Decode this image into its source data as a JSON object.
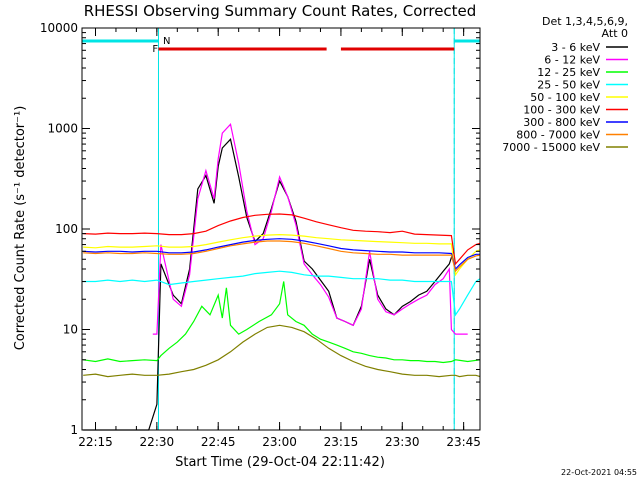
{
  "chart_data": {
    "type": "line",
    "title": "RHESSI Observing Summary Count Rates, Corrected",
    "xlabel": "Start Time (29-Oct-04 22:11:42)",
    "ylabel": "Corrected Count Rate (s⁻¹ detector⁻¹)",
    "yscale": "log",
    "ylim": [
      1,
      10000
    ],
    "xlim_minutes_from_22:00": [
      11.7,
      109
    ],
    "x_ticks": [
      "22:15",
      "22:30",
      "22:45",
      "23:00",
      "23:15",
      "23:30",
      "23:45"
    ],
    "y_ticks": [
      "1",
      "10",
      "100",
      "1000",
      "10000"
    ],
    "legend_title": "Det 1,3,4,5,6,9,",
    "legend_subtitle": "Att 0",
    "legend_position": "right",
    "footer": "22-Oct-2021 04:55",
    "flags": {
      "N_label": "N",
      "F_label": "F",
      "night_segments": [
        [
          11.7,
          30.4
        ],
        [
          102.7,
          109
        ]
      ],
      "flare_segments": [
        [
          30.4,
          71.5
        ],
        [
          75,
          102.7
        ]
      ]
    },
    "series": [
      {
        "name": "3 - 6 keV",
        "color": "#000000",
        "x": [
          12,
          26,
          28,
          30,
          31,
          34,
          36,
          38,
          40,
          42,
          44,
          45,
          46,
          48,
          50,
          52,
          54,
          56,
          58,
          60,
          62,
          64,
          66,
          68,
          70,
          72,
          74,
          76,
          78,
          80,
          82,
          84,
          86,
          88,
          90,
          92,
          94,
          96,
          98,
          100,
          101.5,
          102.5
        ],
        "y": [
          1,
          1,
          1,
          1.8,
          45,
          22,
          18,
          40,
          250,
          340,
          180,
          420,
          640,
          780,
          330,
          130,
          75,
          90,
          160,
          300,
          210,
          120,
          48,
          40,
          31,
          24,
          13,
          12,
          11,
          17,
          50,
          22,
          16,
          14,
          17,
          19,
          22,
          24,
          30,
          38,
          45,
          60
        ]
      },
      {
        "name": "6 - 12 keV",
        "color": "#ff00ff",
        "x": [
          29,
          30,
          31,
          34,
          36,
          38,
          40,
          42,
          44,
          45,
          46,
          48,
          50,
          52,
          54,
          56,
          58,
          60,
          62,
          64,
          66,
          68,
          70,
          72,
          74,
          76,
          78,
          80,
          82,
          84,
          86,
          88,
          90,
          92,
          94,
          96,
          98,
          100,
          101.5,
          102,
          103,
          106
        ],
        "y": [
          9,
          9,
          70,
          20,
          17,
          35,
          200,
          380,
          200,
          500,
          900,
          1100,
          450,
          150,
          70,
          80,
          150,
          330,
          210,
          110,
          45,
          35,
          28,
          21,
          13,
          12,
          11,
          16,
          60,
          20,
          15,
          14,
          16,
          18,
          20,
          22,
          28,
          32,
          40,
          10,
          9,
          9
        ]
      },
      {
        "name": "12 - 25 keV",
        "color": "#00ff00",
        "x": [
          12,
          15,
          18,
          21,
          24,
          27,
          30,
          31,
          33,
          35,
          37,
          39,
          41,
          43,
          45,
          46,
          47,
          48,
          50,
          52,
          55,
          58,
          60,
          61,
          62,
          64,
          66,
          68,
          70,
          72,
          74,
          76,
          78,
          80,
          82,
          84,
          86,
          88,
          90,
          92,
          94,
          96,
          98,
          100,
          102,
          103,
          106,
          109
        ],
        "y": [
          5,
          4.8,
          5.1,
          4.8,
          4.9,
          5,
          4.9,
          5.5,
          6.5,
          7.5,
          9,
          12,
          17,
          14,
          22,
          13,
          26,
          11,
          9,
          10,
          12,
          14,
          18,
          30,
          14,
          12,
          11,
          9,
          8,
          7.5,
          7,
          6.5,
          6,
          5.8,
          5.5,
          5.3,
          5.2,
          5,
          5,
          4.9,
          4.9,
          4.8,
          4.8,
          4.7,
          4.8,
          5,
          4.8,
          5
        ]
      },
      {
        "name": "25 - 50 keV",
        "color": "#00ffff",
        "x": [
          12,
          15,
          18,
          21,
          24,
          27,
          30,
          33,
          36,
          39,
          42,
          45,
          48,
          51,
          54,
          57,
          60,
          63,
          66,
          69,
          72,
          75,
          78,
          81,
          84,
          87,
          90,
          93,
          96,
          99,
          102,
          103,
          104,
          106,
          108,
          109
        ],
        "y": [
          30,
          30,
          31,
          30,
          31,
          30,
          31,
          28,
          29,
          30,
          31,
          32,
          33,
          34,
          36,
          37,
          38,
          37,
          35,
          34,
          34,
          33,
          32,
          32,
          32,
          31,
          31,
          30,
          30,
          30,
          30,
          14,
          16,
          22,
          30,
          32
        ]
      },
      {
        "name": "50 - 100 keV",
        "color": "#ffff00",
        "x": [
          12,
          15,
          18,
          21,
          24,
          27,
          30,
          33,
          36,
          39,
          42,
          45,
          48,
          51,
          54,
          57,
          60,
          63,
          66,
          69,
          72,
          75,
          78,
          81,
          84,
          87,
          90,
          93,
          96,
          99,
          102,
          103,
          104,
          106,
          108,
          109
        ],
        "y": [
          66,
          65,
          67,
          66,
          66,
          67,
          68,
          66,
          66,
          67,
          70,
          74,
          78,
          82,
          85,
          87,
          88,
          87,
          85,
          82,
          80,
          78,
          77,
          76,
          75,
          74,
          73,
          72,
          72,
          71,
          71,
          35,
          40,
          50,
          60,
          62
        ]
      },
      {
        "name": "100 - 300 keV",
        "color": "#ff0000",
        "x": [
          12,
          15,
          18,
          21,
          24,
          27,
          30,
          33,
          36,
          39,
          42,
          45,
          48,
          51,
          54,
          57,
          60,
          63,
          66,
          69,
          72,
          75,
          78,
          81,
          84,
          87,
          90,
          93,
          96,
          99,
          102,
          103,
          104,
          106,
          108,
          109
        ],
        "y": [
          90,
          89,
          91,
          90,
          90,
          91,
          90,
          88,
          88,
          90,
          95,
          108,
          120,
          130,
          137,
          140,
          141,
          138,
          128,
          118,
          110,
          103,
          97,
          95,
          94,
          92,
          95,
          89,
          88,
          87,
          86,
          45,
          50,
          62,
          70,
          72
        ]
      },
      {
        "name": "300 - 800 keV",
        "color": "#0000ff",
        "x": [
          12,
          15,
          18,
          21,
          24,
          27,
          30,
          33,
          36,
          39,
          42,
          45,
          48,
          51,
          54,
          57,
          60,
          63,
          66,
          69,
          72,
          75,
          78,
          81,
          84,
          87,
          90,
          93,
          96,
          99,
          102,
          103,
          104,
          106,
          108,
          109
        ],
        "y": [
          60,
          59,
          60,
          60,
          59,
          60,
          60,
          58,
          58,
          59,
          62,
          66,
          70,
          74,
          77,
          79,
          80,
          79,
          76,
          72,
          68,
          64,
          62,
          61,
          60,
          59,
          59,
          58,
          58,
          58,
          57,
          40,
          44,
          52,
          56,
          56
        ]
      },
      {
        "name": "800 - 7000 keV",
        "color": "#ff8000",
        "x": [
          12,
          15,
          18,
          21,
          24,
          27,
          30,
          33,
          36,
          39,
          42,
          45,
          48,
          51,
          54,
          57,
          60,
          63,
          66,
          69,
          72,
          75,
          78,
          81,
          84,
          87,
          90,
          93,
          96,
          99,
          102,
          103,
          104,
          106,
          108,
          109
        ],
        "y": [
          58,
          57,
          58,
          57,
          57,
          58,
          57,
          56,
          56,
          57,
          60,
          64,
          68,
          71,
          74,
          76,
          76,
          75,
          72,
          68,
          64,
          60,
          58,
          57,
          56,
          56,
          55,
          55,
          55,
          55,
          55,
          38,
          42,
          50,
          54,
          55
        ]
      },
      {
        "name": "7000 - 15000 keV",
        "color": "#808000",
        "x": [
          12,
          15,
          18,
          21,
          24,
          27,
          30,
          33,
          36,
          39,
          42,
          45,
          48,
          51,
          54,
          57,
          60,
          63,
          66,
          69,
          72,
          75,
          78,
          81,
          84,
          87,
          90,
          93,
          96,
          99,
          102,
          103,
          104,
          106,
          108,
          109
        ],
        "y": [
          3.5,
          3.6,
          3.4,
          3.5,
          3.6,
          3.5,
          3.5,
          3.6,
          3.8,
          4,
          4.4,
          5,
          6,
          7.5,
          9,
          10.5,
          11,
          10.5,
          9.5,
          8,
          6.5,
          5.5,
          4.8,
          4.3,
          4,
          3.8,
          3.6,
          3.5,
          3.5,
          3.4,
          3.5,
          3.5,
          3.4,
          3.5,
          3.5,
          3.4
        ]
      }
    ]
  }
}
